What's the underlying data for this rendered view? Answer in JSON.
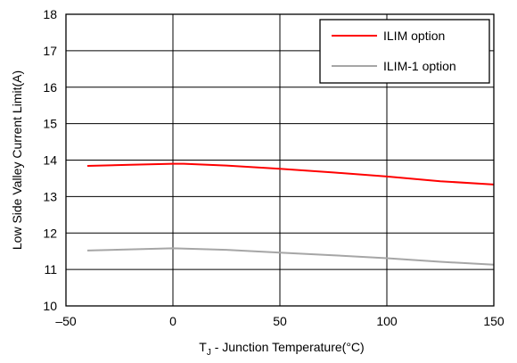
{
  "chart_data": {
    "type": "line",
    "title": "",
    "xlabel_main": "T",
    "xlabel_sub": "J",
    "xlabel_rest": " - Junction Temperature(°C)",
    "ylabel": "Low Side Valley Current Limit(A)",
    "xlim": [
      -50,
      150
    ],
    "ylim": [
      10,
      18
    ],
    "xticks": [
      -50,
      0,
      50,
      100,
      150
    ],
    "yticks": [
      10,
      11,
      12,
      13,
      14,
      15,
      16,
      17,
      18
    ],
    "xtick_labels": [
      "–50",
      "0",
      "50",
      "100",
      "150"
    ],
    "ytick_labels": [
      "10",
      "11",
      "12",
      "13",
      "14",
      "15",
      "16",
      "17",
      "18"
    ],
    "grid": true,
    "legend_position": "top-right",
    "series": [
      {
        "name": "ILIM option",
        "color": "#ff0000",
        "x": [
          -40,
          -20,
          0,
          5,
          25,
          50,
          75,
          100,
          125,
          150
        ],
        "y": [
          13.84,
          13.87,
          13.9,
          13.9,
          13.85,
          13.76,
          13.66,
          13.55,
          13.42,
          13.33
        ]
      },
      {
        "name": "ILIM-1 option",
        "color": "#a6a6a6",
        "x": [
          -40,
          -20,
          0,
          25,
          50,
          75,
          100,
          125,
          150
        ],
        "y": [
          11.52,
          11.55,
          11.58,
          11.54,
          11.46,
          11.39,
          11.31,
          11.21,
          11.13
        ]
      }
    ]
  }
}
